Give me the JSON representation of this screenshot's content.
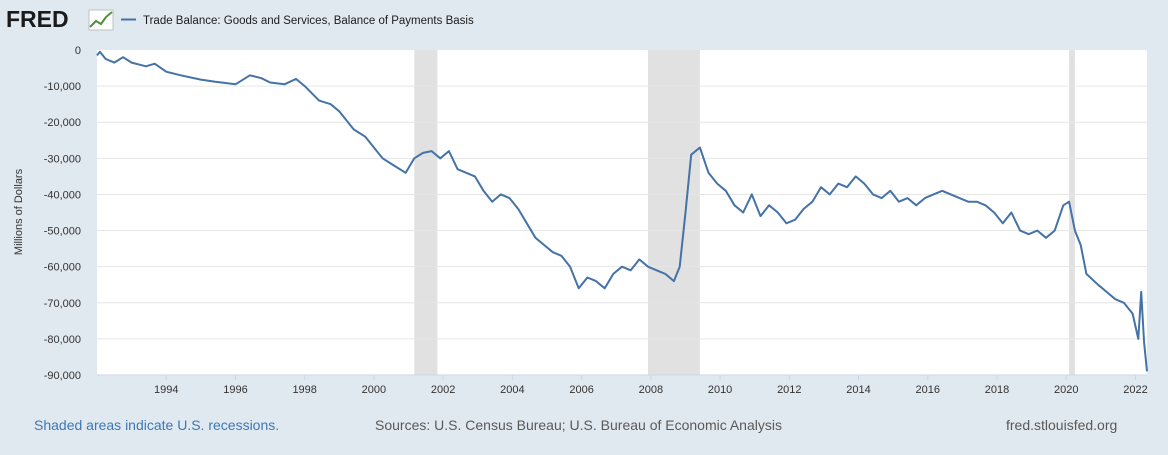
{
  "logo_text": "FRED",
  "footer": {
    "recession_note": "Shaded areas indicate U.S. recessions.",
    "sources": "Sources: U.S. Census Bureau; U.S. Bureau of Economic Analysis",
    "site": "fred.stlouisfed.org"
  },
  "colors": {
    "background": "#e1e9f0",
    "plot_background": "#ffffff",
    "line": "#4572a7",
    "recession_shade": "#e1e1e1",
    "grid": "#e6e6e6",
    "logo_graph": "#4f8f3f",
    "recession_text": "#3d78b5"
  },
  "chart_data": {
    "type": "line",
    "title": "",
    "xlabel": "",
    "ylabel": "Millions of Dollars",
    "legend_position": "top-left",
    "grid": true,
    "x_range": [
      "1992-01",
      "2022-05"
    ],
    "ylim": [
      -90000,
      0
    ],
    "y_ticks": [
      0,
      -10000,
      -20000,
      -30000,
      -40000,
      -50000,
      -60000,
      -70000,
      -80000,
      -90000
    ],
    "y_tick_labels": [
      "0",
      "-10,000",
      "-20,000",
      "-30,000",
      "-40,000",
      "-50,000",
      "-60,000",
      "-70,000",
      "-80,000",
      "-90,000"
    ],
    "x_tick_labels": [
      "1994",
      "1996",
      "1998",
      "2000",
      "2002",
      "2004",
      "2006",
      "2008",
      "2010",
      "2012",
      "2014",
      "2016",
      "2018",
      "2020",
      "2022"
    ],
    "recessions": [
      [
        "2001-03",
        "2001-11"
      ],
      [
        "2007-12",
        "2009-06"
      ],
      [
        "2020-02",
        "2020-04"
      ]
    ],
    "series": [
      {
        "name": "Trade Balance: Goods and Services, Balance of Payments Basis",
        "points": [
          [
            "1992-01",
            -1500
          ],
          [
            "1992-02",
            -500
          ],
          [
            "1992-04",
            -2500
          ],
          [
            "1992-07",
            -3500
          ],
          [
            "1992-10",
            -2000
          ],
          [
            "1993-01",
            -3500
          ],
          [
            "1993-06",
            -4500
          ],
          [
            "1993-09",
            -3800
          ],
          [
            "1994-01",
            -6000
          ],
          [
            "1994-06",
            -7000
          ],
          [
            "1995-01",
            -8200
          ],
          [
            "1995-06",
            -8800
          ],
          [
            "1996-01",
            -9500
          ],
          [
            "1996-06",
            -7000
          ],
          [
            "1996-10",
            -7800
          ],
          [
            "1997-01",
            -9000
          ],
          [
            "1997-06",
            -9500
          ],
          [
            "1997-10",
            -8000
          ],
          [
            "1998-01",
            -10000
          ],
          [
            "1998-06",
            -14000
          ],
          [
            "1998-10",
            -15000
          ],
          [
            "1999-01",
            -17000
          ],
          [
            "1999-06",
            -22000
          ],
          [
            "1999-10",
            -24000
          ],
          [
            "2000-01",
            -27000
          ],
          [
            "2000-04",
            -30000
          ],
          [
            "2000-08",
            -32000
          ],
          [
            "2000-12",
            -34000
          ],
          [
            "2001-03",
            -30000
          ],
          [
            "2001-06",
            -28500
          ],
          [
            "2001-09",
            -28000
          ],
          [
            "2001-12",
            -30000
          ],
          [
            "2002-03",
            -28000
          ],
          [
            "2002-06",
            -33000
          ],
          [
            "2002-12",
            -35000
          ],
          [
            "2003-03",
            -39000
          ],
          [
            "2003-06",
            -42000
          ],
          [
            "2003-09",
            -40000
          ],
          [
            "2003-12",
            -41000
          ],
          [
            "2004-03",
            -44000
          ],
          [
            "2004-06",
            -48000
          ],
          [
            "2004-09",
            -52000
          ],
          [
            "2004-12",
            -54000
          ],
          [
            "2005-03",
            -56000
          ],
          [
            "2005-06",
            -57000
          ],
          [
            "2005-09",
            -60000
          ],
          [
            "2005-12",
            -66000
          ],
          [
            "2006-03",
            -63000
          ],
          [
            "2006-06",
            -64000
          ],
          [
            "2006-09",
            -66000
          ],
          [
            "2006-12",
            -62000
          ],
          [
            "2007-03",
            -60000
          ],
          [
            "2007-06",
            -61000
          ],
          [
            "2007-09",
            -58000
          ],
          [
            "2007-12",
            -60000
          ],
          [
            "2008-03",
            -61000
          ],
          [
            "2008-06",
            -62000
          ],
          [
            "2008-09",
            -64000
          ],
          [
            "2008-11",
            -60000
          ],
          [
            "2009-01",
            -45000
          ],
          [
            "2009-03",
            -29000
          ],
          [
            "2009-06",
            -27000
          ],
          [
            "2009-09",
            -34000
          ],
          [
            "2009-12",
            -37000
          ],
          [
            "2010-03",
            -39000
          ],
          [
            "2010-06",
            -43000
          ],
          [
            "2010-09",
            -45000
          ],
          [
            "2010-12",
            -40000
          ],
          [
            "2011-03",
            -46000
          ],
          [
            "2011-06",
            -43000
          ],
          [
            "2011-09",
            -45000
          ],
          [
            "2011-12",
            -48000
          ],
          [
            "2012-03",
            -47000
          ],
          [
            "2012-06",
            -44000
          ],
          [
            "2012-09",
            -42000
          ],
          [
            "2012-12",
            -38000
          ],
          [
            "2013-03",
            -40000
          ],
          [
            "2013-06",
            -37000
          ],
          [
            "2013-09",
            -38000
          ],
          [
            "2013-12",
            -35000
          ],
          [
            "2014-03",
            -37000
          ],
          [
            "2014-06",
            -40000
          ],
          [
            "2014-09",
            -41000
          ],
          [
            "2014-12",
            -39000
          ],
          [
            "2015-03",
            -42000
          ],
          [
            "2015-06",
            -41000
          ],
          [
            "2015-09",
            -43000
          ],
          [
            "2015-12",
            -41000
          ],
          [
            "2016-03",
            -40000
          ],
          [
            "2016-06",
            -39000
          ],
          [
            "2016-09",
            -40000
          ],
          [
            "2016-12",
            -41000
          ],
          [
            "2017-03",
            -42000
          ],
          [
            "2017-06",
            -42000
          ],
          [
            "2017-09",
            -43000
          ],
          [
            "2017-12",
            -45000
          ],
          [
            "2018-03",
            -48000
          ],
          [
            "2018-06",
            -45000
          ],
          [
            "2018-09",
            -50000
          ],
          [
            "2018-12",
            -51000
          ],
          [
            "2019-03",
            -50000
          ],
          [
            "2019-06",
            -52000
          ],
          [
            "2019-09",
            -50000
          ],
          [
            "2019-12",
            -43000
          ],
          [
            "2020-02",
            -42000
          ],
          [
            "2020-04",
            -50000
          ],
          [
            "2020-06",
            -54000
          ],
          [
            "2020-08",
            -62000
          ],
          [
            "2020-12",
            -65000
          ],
          [
            "2021-03",
            -67000
          ],
          [
            "2021-06",
            -69000
          ],
          [
            "2021-09",
            -70000
          ],
          [
            "2021-12",
            -73000
          ],
          [
            "2022-02",
            -80000
          ],
          [
            "2022-03",
            -67000
          ],
          [
            "2022-04",
            -81000
          ],
          [
            "2022-05",
            -89000
          ]
        ]
      }
    ]
  }
}
